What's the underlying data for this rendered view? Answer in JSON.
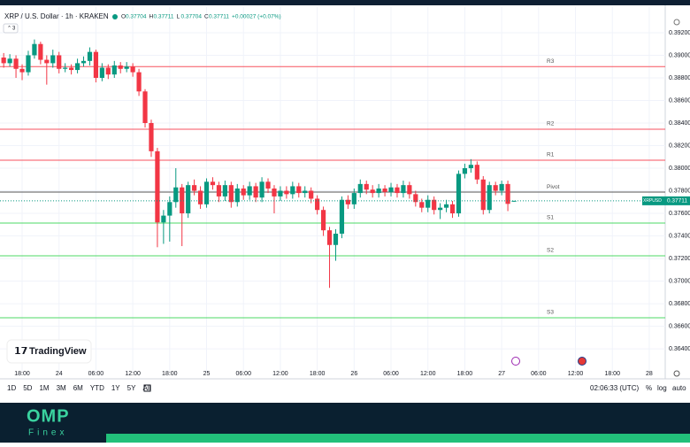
{
  "chart_data": {
    "type": "candlestick",
    "header": {
      "title": "XRP / U.S. Dollar · 1h · KRAKEN",
      "ohlc": [
        {
          "key": "O",
          "text": "0.37704"
        },
        {
          "key": "H",
          "text": "0.37711"
        },
        {
          "key": "L",
          "text": "0.37704"
        },
        {
          "key": "C",
          "text": "0.37711"
        }
      ],
      "change": "+0.00027 (+0.07%)",
      "collapsed": "3"
    },
    "up_color": "#089981",
    "down_color": "#f23645",
    "grid": true,
    "x": [
      -3,
      -2,
      -1,
      0,
      1,
      2,
      3,
      4,
      5,
      6,
      7,
      8,
      9,
      10,
      11,
      12,
      13,
      14,
      15,
      16,
      17,
      18,
      19,
      20,
      21,
      22,
      23,
      24,
      25,
      26,
      27,
      28,
      29,
      30,
      31,
      32,
      33,
      34,
      35,
      36,
      37,
      38,
      39,
      40,
      41,
      42,
      43,
      44,
      45,
      46,
      47,
      48,
      49,
      50,
      51,
      52,
      53,
      54,
      55,
      56,
      57,
      58,
      59,
      60,
      61,
      62,
      63,
      64,
      65,
      66,
      67,
      68,
      69,
      70,
      71,
      72,
      73,
      74,
      75,
      76,
      77,
      78,
      79,
      80
    ],
    "open": [
      0.3898,
      0.3893,
      0.3897,
      0.3888,
      0.3885,
      0.39,
      0.391,
      0.3896,
      0.3893,
      0.39,
      0.3888,
      0.3889,
      0.3887,
      0.3893,
      0.3895,
      0.3903,
      0.388,
      0.3889,
      0.3883,
      0.3891,
      0.3888,
      0.389,
      0.3885,
      0.3868,
      0.384,
      0.3815,
      0.3752,
      0.3758,
      0.377,
      0.3783,
      0.376,
      0.3785,
      0.378,
      0.3768,
      0.3788,
      0.3785,
      0.3775,
      0.3785,
      0.377,
      0.3782,
      0.3776,
      0.3784,
      0.3774,
      0.3788,
      0.3782,
      0.3775,
      0.378,
      0.3777,
      0.3784,
      0.3778,
      0.378,
      0.3773,
      0.3763,
      0.3745,
      0.3732,
      0.3742,
      0.3772,
      0.3768,
      0.3778,
      0.3786,
      0.3781,
      0.3778,
      0.3782,
      0.3779,
      0.3783,
      0.3778,
      0.3785,
      0.3777,
      0.377,
      0.3765,
      0.3772,
      0.3763,
      0.3765,
      0.3768,
      0.376,
      0.3795,
      0.38,
      0.3803,
      0.379,
      0.3763,
      0.3785,
      0.378,
      0.3786,
      0.37704
    ],
    "high": [
      0.3902,
      0.3901,
      0.39,
      0.3892,
      0.3904,
      0.3914,
      0.3912,
      0.39,
      0.3905,
      0.3903,
      0.3893,
      0.3892,
      0.3897,
      0.3899,
      0.3907,
      0.3905,
      0.3893,
      0.3892,
      0.3895,
      0.3894,
      0.3894,
      0.3893,
      0.3888,
      0.387,
      0.3843,
      0.3818,
      0.3763,
      0.3775,
      0.38,
      0.3786,
      0.3788,
      0.379,
      0.3784,
      0.3791,
      0.3792,
      0.3788,
      0.3789,
      0.3788,
      0.3786,
      0.3785,
      0.3788,
      0.3787,
      0.3792,
      0.3791,
      0.3785,
      0.3784,
      0.3784,
      0.3788,
      0.3787,
      0.3784,
      0.3783,
      0.3776,
      0.3766,
      0.3748,
      0.3746,
      0.3775,
      0.3776,
      0.3782,
      0.379,
      0.3789,
      0.3785,
      0.3786,
      0.3785,
      0.3787,
      0.3786,
      0.3789,
      0.3788,
      0.378,
      0.3773,
      0.3776,
      0.3775,
      0.3769,
      0.3772,
      0.3771,
      0.3798,
      0.3804,
      0.3808,
      0.3806,
      0.3793,
      0.3788,
      0.3788,
      0.3789,
      0.3789,
      0.37711
    ],
    "low": [
      0.3889,
      0.389,
      0.388,
      0.3878,
      0.3882,
      0.3897,
      0.3892,
      0.3874,
      0.3889,
      0.3884,
      0.3885,
      0.3883,
      0.3884,
      0.389,
      0.3891,
      0.3876,
      0.3877,
      0.3879,
      0.388,
      0.3884,
      0.3885,
      0.3881,
      0.3864,
      0.3836,
      0.381,
      0.373,
      0.3733,
      0.3735,
      0.3765,
      0.3731,
      0.3756,
      0.3776,
      0.3764,
      0.3765,
      0.3781,
      0.377,
      0.3771,
      0.3765,
      0.3766,
      0.3772,
      0.3772,
      0.377,
      0.377,
      0.3778,
      0.376,
      0.3771,
      0.3773,
      0.3773,
      0.3774,
      0.3774,
      0.3769,
      0.3759,
      0.374,
      0.3694,
      0.3718,
      0.3738,
      0.3764,
      0.3764,
      0.3774,
      0.3777,
      0.3774,
      0.3774,
      0.3775,
      0.3775,
      0.3774,
      0.3774,
      0.3773,
      0.3766,
      0.3761,
      0.3761,
      0.3759,
      0.3755,
      0.3761,
      0.3756,
      0.3757,
      0.3791,
      0.3796,
      0.3786,
      0.3759,
      0.376,
      0.3776,
      0.3776,
      0.3762,
      0.37704
    ],
    "close": [
      0.3893,
      0.3897,
      0.3888,
      0.3885,
      0.39,
      0.391,
      0.3896,
      0.3893,
      0.39,
      0.3888,
      0.3889,
      0.3887,
      0.3893,
      0.3895,
      0.3903,
      0.388,
      0.3889,
      0.3883,
      0.3891,
      0.3888,
      0.389,
      0.3885,
      0.3868,
      0.384,
      0.3815,
      0.3752,
      0.3758,
      0.377,
      0.3783,
      0.376,
      0.3785,
      0.378,
      0.3768,
      0.3788,
      0.3785,
      0.3775,
      0.3785,
      0.377,
      0.3782,
      0.3776,
      0.3784,
      0.3774,
      0.3788,
      0.3782,
      0.3775,
      0.378,
      0.3777,
      0.3784,
      0.3778,
      0.378,
      0.3773,
      0.3763,
      0.3745,
      0.3732,
      0.3742,
      0.3772,
      0.3768,
      0.3778,
      0.3786,
      0.3781,
      0.3778,
      0.3782,
      0.3779,
      0.3783,
      0.3778,
      0.3785,
      0.3777,
      0.377,
      0.3765,
      0.3772,
      0.3763,
      0.3765,
      0.3768,
      0.376,
      0.3795,
      0.38,
      0.3803,
      0.379,
      0.3763,
      0.3785,
      0.378,
      0.3786,
      0.37684,
      0.37711
    ],
    "xlim": [
      -3.6,
      104.6
    ],
    "xticks": [
      {
        "value": 0,
        "label": "18:00"
      },
      {
        "value": 6,
        "label": "24"
      },
      {
        "value": 12,
        "label": "06:00"
      },
      {
        "value": 18,
        "label": "12:00"
      },
      {
        "value": 24,
        "label": "18:00"
      },
      {
        "value": 30,
        "label": "25"
      },
      {
        "value": 36,
        "label": "06:00"
      },
      {
        "value": 42,
        "label": "12:00"
      },
      {
        "value": 48,
        "label": "18:00"
      },
      {
        "value": 54,
        "label": "26"
      },
      {
        "value": 60,
        "label": "06:00"
      },
      {
        "value": 66,
        "label": "12:00"
      },
      {
        "value": 72,
        "label": "18:00"
      },
      {
        "value": 78,
        "label": "27"
      },
      {
        "value": 84,
        "label": "06:00"
      },
      {
        "value": 90,
        "label": "12:00"
      },
      {
        "value": 96,
        "label": "18:00"
      },
      {
        "value": 102,
        "label": "28"
      }
    ],
    "ylim": [
      0.36197,
      0.39427
    ],
    "yticks": [
      {
        "value": 0.392,
        "label": "0.39200"
      },
      {
        "value": 0.39,
        "label": "0.39000"
      },
      {
        "value": 0.388,
        "label": "0.38800"
      },
      {
        "value": 0.386,
        "label": "0.38600"
      },
      {
        "value": 0.384,
        "label": "0.38400"
      },
      {
        "value": 0.382,
        "label": "0.38200"
      },
      {
        "value": 0.38,
        "label": "0.38000"
      },
      {
        "value": 0.378,
        "label": "0.37800"
      },
      {
        "value": 0.376,
        "label": "0.37600"
      },
      {
        "value": 0.374,
        "label": "0.37400"
      },
      {
        "value": 0.372,
        "label": "0.37200"
      },
      {
        "value": 0.37,
        "label": "0.37000"
      },
      {
        "value": 0.368,
        "label": "0.36800"
      },
      {
        "value": 0.366,
        "label": "0.36600"
      },
      {
        "value": 0.364,
        "label": "0.36400"
      }
    ],
    "pivots": [
      {
        "name": "R3",
        "value": 0.389,
        "color": "#f7525f"
      },
      {
        "name": "R2",
        "value": 0.38345,
        "color": "#f7525f"
      },
      {
        "name": "R1",
        "value": 0.38071,
        "color": "#f7525f"
      },
      {
        "name": "Pivot",
        "value": 0.37788,
        "color": "#555555"
      },
      {
        "name": "S1",
        "value": 0.37514,
        "color": "#4cd964"
      },
      {
        "name": "S2",
        "value": 0.37224,
        "color": "#4cd964"
      },
      {
        "name": "S3",
        "value": 0.36675,
        "color": "#4cd964"
      }
    ],
    "last_price": {
      "symbol": "XRPUSD",
      "value": 0.37711,
      "label": "0.37711"
    }
  },
  "toolbar": {
    "ranges": [
      "1D",
      "5D",
      "1M",
      "3M",
      "6M",
      "YTD",
      "1Y",
      "5Y",
      "All"
    ],
    "clock": "02:06:33 (UTC)",
    "options": [
      "%",
      "log",
      "auto"
    ]
  },
  "logo": "TradingView",
  "brand": {
    "name": "OMP",
    "sub": "Finex"
  }
}
